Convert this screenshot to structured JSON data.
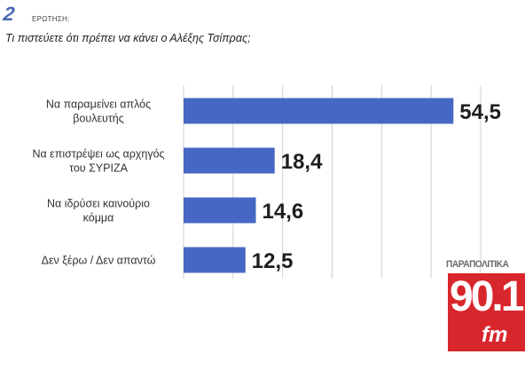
{
  "header": {
    "question_number": "2",
    "question_label": "ΕΡΩΤΗΣΗ:",
    "question_text": "Τι πιστεύετε ότι πρέπει να κάνει ο Αλέξης Τσίπρας;"
  },
  "logo": {
    "top_text": "ΠΑΡΑΠΟΛΙΤΙΚΑ",
    "number": "90.1",
    "suffix": "fm"
  },
  "colors": {
    "bar": "#4668c4",
    "grid": "#d0d0d0",
    "logo_red": "#d8262d"
  },
  "chart_data": {
    "type": "bar",
    "orientation": "horizontal",
    "categories": [
      [
        "Να παραμείνει απλός",
        "βουλευτής"
      ],
      [
        "Να επιστρέψει ως αρχηγός",
        "του ΣΥΡΙΖΑ"
      ],
      [
        "Να ιδρύσει καινούριο",
        "κόμμα"
      ],
      [
        "Δεν ξέρω / Δεν απαντώ"
      ]
    ],
    "values": [
      54.5,
      18.4,
      14.6,
      12.5
    ],
    "value_labels": [
      "54,5",
      "18,4",
      "14,6",
      "12,5"
    ],
    "xlim": [
      0,
      60
    ],
    "grid": true
  }
}
